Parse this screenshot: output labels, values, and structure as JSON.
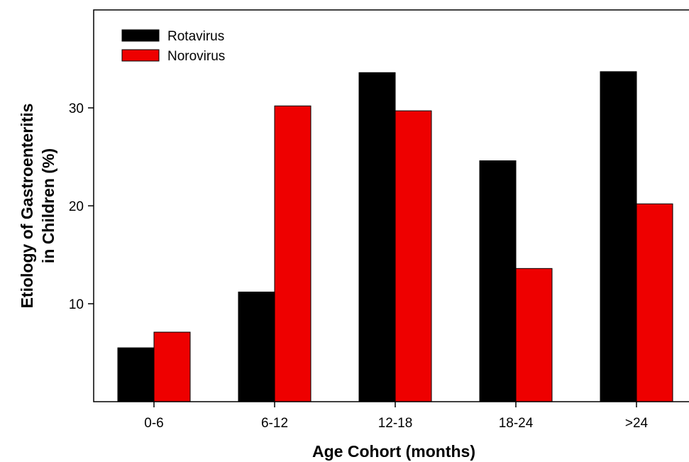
{
  "chart_data": {
    "type": "bar",
    "categories": [
      "0-6",
      "6-12",
      "12-18",
      "18-24",
      ">24"
    ],
    "series": [
      {
        "name": "Rotavirus",
        "color": "#000000",
        "values": [
          5.5,
          11.2,
          33.6,
          24.6,
          33.7
        ]
      },
      {
        "name": "Norovirus",
        "color": "#ee0000",
        "values": [
          7.1,
          30.2,
          29.7,
          13.6,
          20.2
        ]
      }
    ],
    "xlabel": "Age Cohort (months)",
    "ylabel_lines": [
      "Etiology of Gastroenteritis",
      "in Children (%)"
    ],
    "yticks": [
      10,
      20,
      30
    ],
    "ylim": [
      0,
      40
    ],
    "legend_position": "top-left",
    "grid": false
  }
}
